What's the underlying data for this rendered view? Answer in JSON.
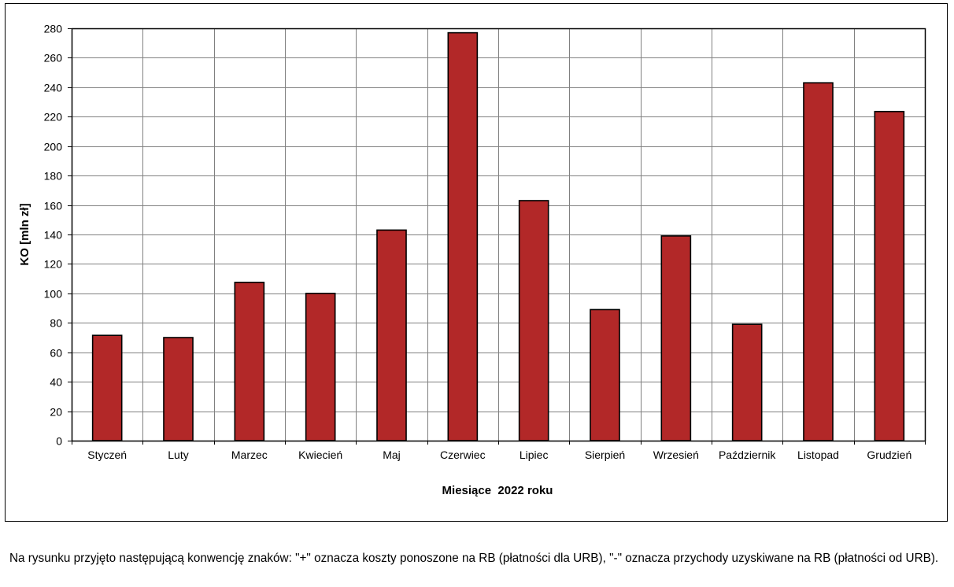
{
  "chart_data": {
    "type": "bar",
    "categories": [
      "Styczeń",
      "Luty",
      "Marzec",
      "Kwiecień",
      "Maj",
      "Czerwiec",
      "Lipiec",
      "Sierpień",
      "Wrzesień",
      "Październik",
      "Listopad",
      "Grudzień"
    ],
    "values": [
      71.5,
      70,
      107.5,
      100,
      143,
      277,
      163,
      89,
      139,
      79,
      243,
      223.5
    ],
    "title": "",
    "xlabel": "Miesiące  2022 roku",
    "ylabel": "KO [mln zł]",
    "ylim": [
      0,
      280
    ],
    "yticks": [
      0,
      20,
      40,
      60,
      80,
      100,
      120,
      140,
      160,
      180,
      200,
      220,
      240,
      260,
      280
    ],
    "grid": true,
    "bar_color": "#B22828",
    "grid_color": "#808080"
  },
  "note": "Na rysunku przyjęto następującą konwencję znaków: \"+\" oznacza koszty ponoszone na RB (płatności dla URB), \"-\" oznacza przychody uzyskiwane na RB (płatności od URB)."
}
